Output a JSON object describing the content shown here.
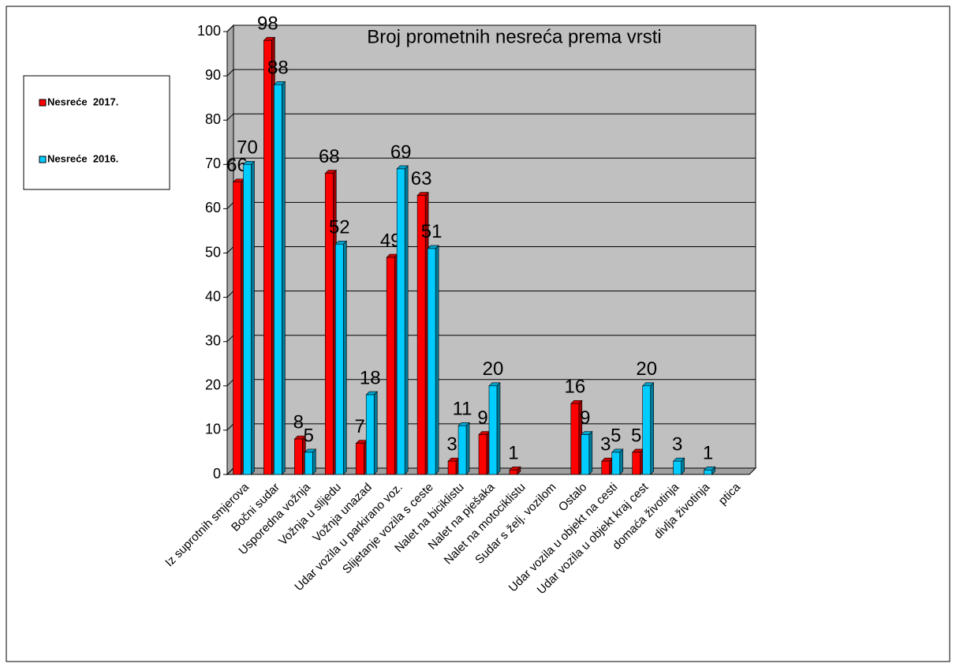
{
  "chart_data": {
    "type": "bar",
    "title": "Broj prometnih nesreća prema vrsti",
    "categories": [
      "Iz suprotnih smjerova",
      "Bočni sudar",
      "Usporedna vožnja",
      "Vožnja u slijedu",
      "Vožnja unazad",
      "Udar vozila u parkirano voz.",
      "Slijetanje vozila s ceste",
      "Nalet na biciklistu",
      "Nalet na pješaka",
      "Nalet na motociklistu",
      "Sudar s želj. vozilom",
      "Ostalo",
      "Udar vozila u objekt na cesti",
      "Udar vozila u objekt kraj cest",
      "domaća životinja",
      "divlja životinja",
      "ptica"
    ],
    "series": [
      {
        "name": "Nesreće  2017.",
        "color": "#ff0000",
        "values": [
          66,
          98,
          8,
          68,
          7,
          49,
          63,
          3,
          9,
          1,
          null,
          16,
          3,
          5,
          null,
          null,
          null
        ]
      },
      {
        "name": "Nesreće  2016.",
        "color": "#00ccff",
        "values": [
          70,
          88,
          5,
          52,
          18,
          69,
          51,
          11,
          20,
          null,
          null,
          9,
          5,
          20,
          3,
          1,
          null
        ]
      }
    ],
    "ylim": [
      0,
      100
    ],
    "yticks": [
      0,
      10,
      20,
      30,
      40,
      50,
      60,
      70,
      80,
      90,
      100
    ],
    "grid": true,
    "legend": "left"
  }
}
